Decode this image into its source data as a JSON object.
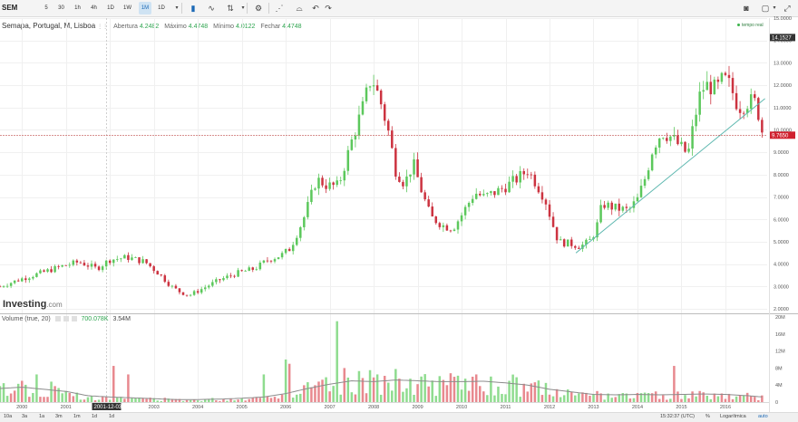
{
  "toolbar": {
    "symbol": "SEM",
    "intervals": [
      "5",
      "30",
      "1h",
      "4h",
      "1D",
      "1W",
      "1M",
      "1D"
    ],
    "active_interval_index": 6
  },
  "legend": {
    "title": "Semapa, Portugal, M, Lisboa",
    "open_label": "Abertura",
    "open_value": "4.2482",
    "high_label": "Máximo",
    "high_value": "4.4748",
    "low_label": "Mínimo",
    "low_value": "4.0122",
    "close_label": "Fechar",
    "close_value": "4.4748",
    "realtime_label": "tempo real"
  },
  "volume_legend": {
    "label": "Volume (true, 20)",
    "value1": "700.078K",
    "value2": "3.54M"
  },
  "logo": {
    "name": "Investing",
    "domain": ".com"
  },
  "bottom_bar": {
    "ranges": [
      "10a",
      "3a",
      "1a",
      "3m",
      "1m",
      "1d",
      "1d"
    ],
    "time": "15:32:37 (UTC)",
    "percent_label": "%",
    "log_label": "Logarítmica",
    "auto_label": "auto"
  },
  "colors": {
    "up": "#5cc85c",
    "down": "#cc3340",
    "vol_up": "#8fdc8f",
    "vol_down": "#e8898f",
    "trendline": "#5fb8b0",
    "price_line": "#c0504d",
    "ma_line": "#8c8c8c"
  },
  "chart_data": [
    {
      "type": "candlestick",
      "y_axis_ticks": [
        "2.0000",
        "3.0000",
        "4.0000",
        "5.0000",
        "6.0000",
        "7.0000",
        "8.0000",
        "9.0000",
        "10.0000",
        "11.0000",
        "12.0000",
        "13.0000",
        "14.0000",
        "15.0000"
      ],
      "ylim": [
        1.8,
        15.0
      ],
      "x_axis_labels": [
        "2000",
        "2001",
        "2002",
        "2003",
        "2004",
        "2005",
        "2006",
        "2007",
        "2008",
        "2009",
        "2010",
        "2011",
        "2012",
        "2013",
        "2014",
        "2015",
        "2016"
      ],
      "xlim": [
        1999.5,
        2016.95
      ],
      "high_marker": "14.1527",
      "last_price_marker": "9.7650",
      "crosshair_date": "2001-12-03",
      "crosshair_x": 2001.92,
      "trendline": {
        "start": [
          2012.6,
          4.5
        ],
        "end": [
          2016.9,
          11.4
        ]
      },
      "price_line": 9.765,
      "anchors": [
        [
          1999.5,
          3.0
        ],
        [
          2000.0,
          3.35
        ],
        [
          2000.5,
          3.65
        ],
        [
          2000.9,
          3.9
        ],
        [
          2001.3,
          4.1
        ],
        [
          2001.7,
          3.8
        ],
        [
          2002.0,
          4.2
        ],
        [
          2002.4,
          4.3
        ],
        [
          2002.8,
          4.1
        ],
        [
          2003.1,
          3.6
        ],
        [
          2003.4,
          3.0
        ],
        [
          2003.6,
          2.75
        ],
        [
          2003.8,
          2.6
        ],
        [
          2004.1,
          2.9
        ],
        [
          2004.5,
          3.3
        ],
        [
          2004.9,
          3.6
        ],
        [
          2005.3,
          3.8
        ],
        [
          2005.6,
          4.2
        ],
        [
          2005.9,
          4.4
        ],
        [
          2006.1,
          4.7
        ],
        [
          2006.4,
          6.0
        ],
        [
          2006.7,
          7.8
        ],
        [
          2006.95,
          7.5
        ],
        [
          2007.2,
          7.5
        ],
        [
          2007.5,
          9.5
        ],
        [
          2007.75,
          11.0
        ],
        [
          2007.95,
          12.4
        ],
        [
          2008.15,
          11.3
        ],
        [
          2008.35,
          9.8
        ],
        [
          2008.5,
          8.2
        ],
        [
          2008.7,
          7.6
        ],
        [
          2008.9,
          8.5
        ],
        [
          2009.1,
          7.2
        ],
        [
          2009.3,
          6.1
        ],
        [
          2009.6,
          5.7
        ],
        [
          2009.8,
          5.6
        ],
        [
          2010.0,
          6.2
        ],
        [
          2010.3,
          7.2
        ],
        [
          2010.5,
          7.0
        ],
        [
          2010.75,
          7.2
        ],
        [
          2010.95,
          7.4
        ],
        [
          2011.25,
          7.8
        ],
        [
          2011.5,
          8.2
        ],
        [
          2011.7,
          7.6
        ],
        [
          2011.9,
          6.9
        ],
        [
          2012.05,
          5.9
        ],
        [
          2012.2,
          5.0
        ],
        [
          2012.5,
          4.9
        ],
        [
          2012.7,
          4.8
        ],
        [
          2012.9,
          5.0
        ],
        [
          2013.05,
          5.5
        ],
        [
          2013.2,
          6.7
        ],
        [
          2013.5,
          6.5
        ],
        [
          2013.8,
          6.4
        ],
        [
          2014.0,
          6.9
        ],
        [
          2014.2,
          8.0
        ],
        [
          2014.35,
          9.2
        ],
        [
          2014.55,
          9.9
        ],
        [
          2014.75,
          9.7
        ],
        [
          2014.95,
          9.3
        ],
        [
          2015.15,
          8.9
        ],
        [
          2015.3,
          10.5
        ],
        [
          2015.45,
          11.8
        ],
        [
          2015.6,
          12.0
        ],
        [
          2015.8,
          11.8
        ],
        [
          2015.95,
          12.3
        ],
        [
          2016.1,
          12.0
        ],
        [
          2016.3,
          11.0
        ],
        [
          2016.55,
          11.3
        ],
        [
          2016.7,
          11.2
        ],
        [
          2016.85,
          9.8
        ]
      ]
    },
    {
      "type": "bar",
      "name": "Volume",
      "y_axis_ticks": [
        "0",
        "4M",
        "8M",
        "12M",
        "16M",
        "20M"
      ],
      "ylim": [
        0,
        20
      ],
      "ma_anchors": [
        [
          1999.5,
          3.2
        ],
        [
          2000.0,
          3.5
        ],
        [
          2000.5,
          3.0
        ],
        [
          2001.0,
          2.5
        ],
        [
          2001.5,
          1.5
        ],
        [
          2002.0,
          1.2
        ],
        [
          2002.5,
          1.0
        ],
        [
          2003.0,
          0.8
        ],
        [
          2003.5,
          0.6
        ],
        [
          2004.0,
          0.6
        ],
        [
          2004.5,
          0.7
        ],
        [
          2005.0,
          0.9
        ],
        [
          2005.5,
          1.2
        ],
        [
          2006.0,
          2.0
        ],
        [
          2006.5,
          3.2
        ],
        [
          2007.0,
          4.2
        ],
        [
          2007.5,
          5.0
        ],
        [
          2008.0,
          4.8
        ],
        [
          2008.5,
          5.2
        ],
        [
          2009.0,
          5.0
        ],
        [
          2009.5,
          4.8
        ],
        [
          2010.0,
          4.8
        ],
        [
          2010.5,
          4.9
        ],
        [
          2011.0,
          4.5
        ],
        [
          2011.5,
          4.0
        ],
        [
          2012.0,
          3.0
        ],
        [
          2012.5,
          2.4
        ],
        [
          2013.0,
          1.8
        ],
        [
          2013.5,
          1.7
        ],
        [
          2014.0,
          1.8
        ],
        [
          2014.5,
          1.7
        ],
        [
          2015.0,
          1.8
        ],
        [
          2015.5,
          1.9
        ],
        [
          2016.0,
          1.8
        ],
        [
          2016.5,
          1.5
        ],
        [
          2016.85,
          1.2
        ]
      ],
      "spikes": [
        [
          2007.2,
          19
        ],
        [
          2006.0,
          10.0
        ],
        [
          2006.05,
          9.0
        ],
        [
          2002.1,
          8.5
        ],
        [
          2002.45,
          6.5
        ],
        [
          2007.35,
          8.0
        ],
        [
          2014.8,
          8.5
        ],
        [
          2007.9,
          7.5
        ],
        [
          2000.0,
          5.0
        ],
        [
          2000.35,
          6.5
        ],
        [
          2000.7,
          4.8
        ],
        [
          2005.5,
          6.5
        ],
        [
          2008.1,
          6.5
        ],
        [
          2009.05,
          6.0
        ],
        [
          2009.9,
          6.2
        ],
        [
          2010.35,
          6.5
        ],
        [
          2010.7,
          6.0
        ],
        [
          2011.1,
          5.0
        ],
        [
          2011.95,
          4.5
        ],
        [
          2008.6,
          5.5
        ],
        [
          2008.85,
          5.5
        ],
        [
          2009.55,
          5.2
        ],
        [
          2010.05,
          5.5
        ],
        [
          2012.5,
          2.4
        ],
        [
          2013.3,
          2.0
        ],
        [
          2015.45,
          2.6
        ]
      ]
    }
  ]
}
